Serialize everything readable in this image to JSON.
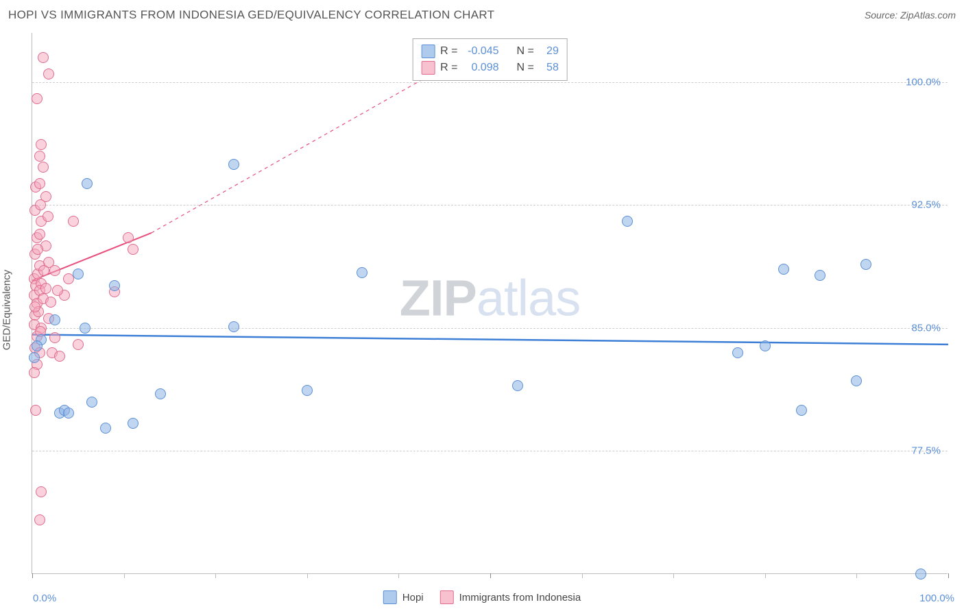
{
  "title": "HOPI VS IMMIGRANTS FROM INDONESIA GED/EQUIVALENCY CORRELATION CHART",
  "source_label": "Source:",
  "source_name": "ZipAtlas.com",
  "watermark_zip": "ZIP",
  "watermark_atlas": "atlas",
  "chart": {
    "type": "scatter",
    "background_color": "#ffffff",
    "grid_color": "#cccccc",
    "axis_color": "#bbbbbb",
    "label_color": "#5b8fd6",
    "text_color": "#555555",
    "ylabel": "GED/Equivalency",
    "ylabel_fontsize": 15,
    "xlim": [
      0,
      100
    ],
    "ylim": [
      70,
      103
    ],
    "yticks": [
      {
        "v": 77.5,
        "label": "77.5%"
      },
      {
        "v": 85.0,
        "label": "85.0%"
      },
      {
        "v": 92.5,
        "label": "92.5%"
      },
      {
        "v": 100.0,
        "label": "100.0%"
      }
    ],
    "xticks_major": [
      0,
      50,
      100
    ],
    "xticks_minor": [
      10,
      20,
      30,
      40,
      60,
      70,
      80,
      90
    ],
    "xtick_labels": [
      {
        "v": 0,
        "label": "0.0%"
      },
      {
        "v": 100,
        "label": "100.0%"
      }
    ],
    "series": [
      {
        "name": "Hopi",
        "marker_color_fill": "rgba(140,179,228,0.55)",
        "marker_color_stroke": "#5b8fd6",
        "marker_size": 16,
        "trend_color": "#3d7fd6",
        "trend_width": 2.5,
        "trend": {
          "x1": 0,
          "y1": 84.6,
          "x2": 100,
          "y2": 84.0
        },
        "points": [
          {
            "x": 1,
            "y": 84.3
          },
          {
            "x": 0.5,
            "y": 83.9
          },
          {
            "x": 0.2,
            "y": 83.2
          },
          {
            "x": 2.5,
            "y": 85.5
          },
          {
            "x": 3,
            "y": 79.8
          },
          {
            "x": 3.5,
            "y": 80.0
          },
          {
            "x": 5,
            "y": 88.3
          },
          {
            "x": 5.8,
            "y": 85.0
          },
          {
            "x": 6.5,
            "y": 80.5
          },
          {
            "x": 8,
            "y": 78.9
          },
          {
            "x": 9,
            "y": 87.6
          },
          {
            "x": 11,
            "y": 79.2
          },
          {
            "x": 4,
            "y": 79.8
          },
          {
            "x": 14,
            "y": 81.0
          },
          {
            "x": 22,
            "y": 95.0
          },
          {
            "x": 22,
            "y": 85.1
          },
          {
            "x": 30,
            "y": 81.2
          },
          {
            "x": 36,
            "y": 88.4
          },
          {
            "x": 6,
            "y": 93.8
          },
          {
            "x": 53,
            "y": 81.5
          },
          {
            "x": 65,
            "y": 91.5
          },
          {
            "x": 77,
            "y": 83.5
          },
          {
            "x": 80,
            "y": 83.9
          },
          {
            "x": 82,
            "y": 88.6
          },
          {
            "x": 84,
            "y": 80.0
          },
          {
            "x": 86,
            "y": 88.2
          },
          {
            "x": 90,
            "y": 81.8
          },
          {
            "x": 91,
            "y": 88.9
          },
          {
            "x": 97,
            "y": 70.0
          }
        ]
      },
      {
        "name": "Immigrants from Indonesia",
        "marker_color_fill": "rgba(244,166,188,0.5)",
        "marker_color_stroke": "#e06b8c",
        "marker_size": 16,
        "trend_color": "#e84f7d",
        "trend_width": 2,
        "trend_solid": {
          "x1": 0,
          "y1": 87.9,
          "x2": 13,
          "y2": 90.8
        },
        "trend_dashed": {
          "x1": 13,
          "y1": 90.8,
          "x2": 50,
          "y2": 102.5
        },
        "points": [
          {
            "x": 1.2,
            "y": 101.5
          },
          {
            "x": 1.8,
            "y": 100.5
          },
          {
            "x": 0.5,
            "y": 99.0
          },
          {
            "x": 1.0,
            "y": 96.2
          },
          {
            "x": 0.8,
            "y": 95.5
          },
          {
            "x": 1.2,
            "y": 94.8
          },
          {
            "x": 0.4,
            "y": 93.6
          },
          {
            "x": 0.8,
            "y": 93.8
          },
          {
            "x": 1.5,
            "y": 93.0
          },
          {
            "x": 0.3,
            "y": 92.2
          },
          {
            "x": 1.0,
            "y": 91.5
          },
          {
            "x": 4.5,
            "y": 91.5
          },
          {
            "x": 0.5,
            "y": 90.5
          },
          {
            "x": 0.8,
            "y": 90.7
          },
          {
            "x": 1.5,
            "y": 90.0
          },
          {
            "x": 0.3,
            "y": 89.5
          },
          {
            "x": 1.8,
            "y": 89.0
          },
          {
            "x": 2.5,
            "y": 88.5
          },
          {
            "x": 0.2,
            "y": 88.0
          },
          {
            "x": 0.6,
            "y": 88.3
          },
          {
            "x": 0.4,
            "y": 87.6
          },
          {
            "x": 1.0,
            "y": 87.7
          },
          {
            "x": 0.2,
            "y": 87.0
          },
          {
            "x": 0.8,
            "y": 87.3
          },
          {
            "x": 0.5,
            "y": 86.5
          },
          {
            "x": 1.2,
            "y": 86.8
          },
          {
            "x": 2.0,
            "y": 86.6
          },
          {
            "x": 3.5,
            "y": 87.0
          },
          {
            "x": 0.3,
            "y": 85.8
          },
          {
            "x": 0.7,
            "y": 86.0
          },
          {
            "x": 0.2,
            "y": 85.2
          },
          {
            "x": 1.0,
            "y": 85.0
          },
          {
            "x": 0.5,
            "y": 84.5
          },
          {
            "x": 2.5,
            "y": 84.4
          },
          {
            "x": 5,
            "y": 84.0
          },
          {
            "x": 0.3,
            "y": 83.8
          },
          {
            "x": 0.8,
            "y": 83.5
          },
          {
            "x": 2.2,
            "y": 83.5
          },
          {
            "x": 3.0,
            "y": 83.3
          },
          {
            "x": 0.5,
            "y": 82.8
          },
          {
            "x": 0.2,
            "y": 82.3
          },
          {
            "x": 1.5,
            "y": 87.4
          },
          {
            "x": 0.8,
            "y": 88.8
          },
          {
            "x": 0.4,
            "y": 80.0
          },
          {
            "x": 1.0,
            "y": 75.0
          },
          {
            "x": 0.8,
            "y": 73.3
          },
          {
            "x": 10.5,
            "y": 90.5
          },
          {
            "x": 11,
            "y": 89.8
          },
          {
            "x": 9,
            "y": 87.2
          },
          {
            "x": 4,
            "y": 88.0
          },
          {
            "x": 2.8,
            "y": 87.3
          },
          {
            "x": 0.6,
            "y": 89.8
          },
          {
            "x": 1.3,
            "y": 88.5
          },
          {
            "x": 0.9,
            "y": 92.5
          },
          {
            "x": 1.7,
            "y": 91.8
          },
          {
            "x": 0.3,
            "y": 86.3
          },
          {
            "x": 0.9,
            "y": 84.8
          },
          {
            "x": 1.8,
            "y": 85.6
          }
        ]
      }
    ],
    "stat_legend": {
      "rows": [
        {
          "swatch": "blue",
          "r_label": "R =",
          "r_val": "-0.045",
          "n_label": "N =",
          "n_val": "29"
        },
        {
          "swatch": "pink",
          "r_label": "R =",
          "r_val": " 0.098",
          "n_label": "N =",
          "n_val": "58"
        }
      ]
    },
    "bottom_legend": [
      {
        "swatch": "blue",
        "label": "Hopi"
      },
      {
        "swatch": "pink",
        "label": "Immigrants from Indonesia"
      }
    ]
  }
}
